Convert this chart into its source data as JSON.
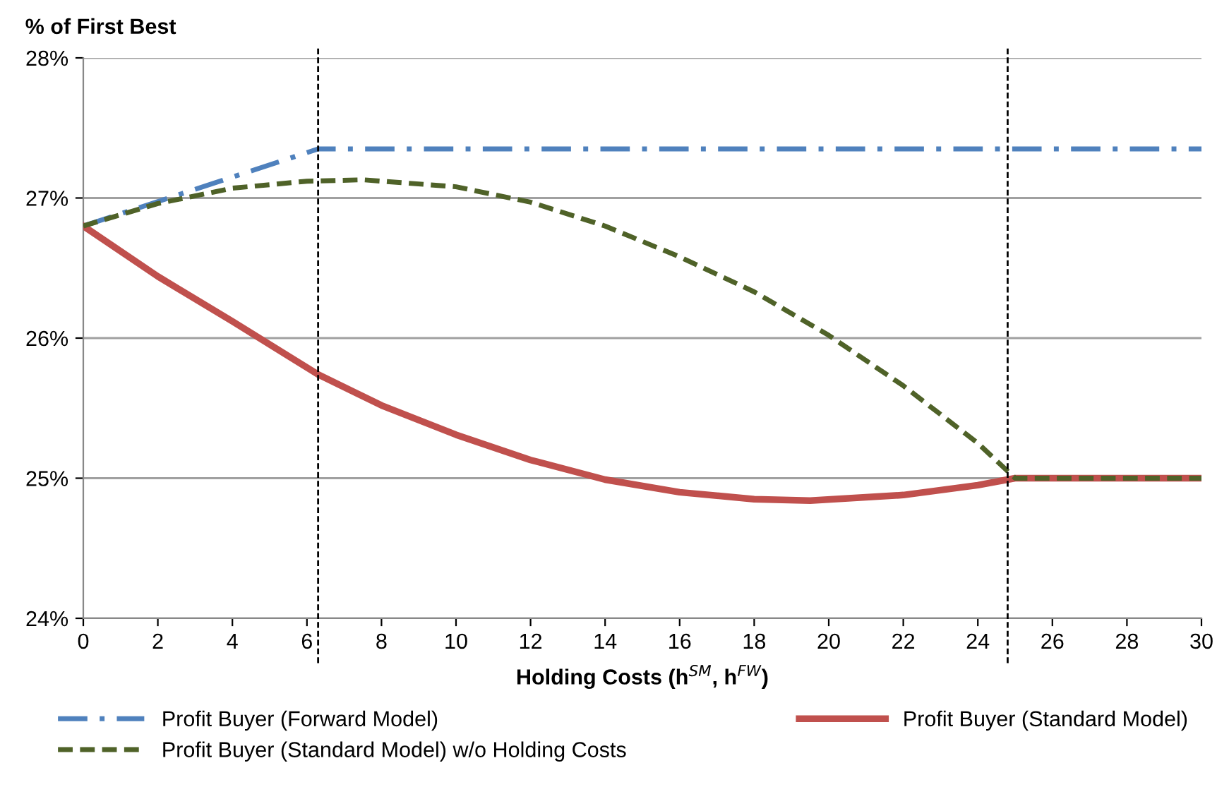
{
  "chart_data": {
    "type": "line",
    "ylabel": "% of First Best",
    "xlabel": "Holding Costs (h$^{SM}$, h$^{FW}$)",
    "xlim": [
      0,
      30
    ],
    "xticks": [
      0,
      2,
      4,
      6,
      8,
      10,
      12,
      14,
      16,
      18,
      20,
      22,
      24,
      26,
      28,
      30
    ],
    "ylim": [
      24,
      28
    ],
    "yticks": [
      {
        "value": 24,
        "label": "24%"
      },
      {
        "value": 25,
        "label": "25%"
      },
      {
        "value": 26,
        "label": "26%"
      },
      {
        "value": 27,
        "label": "27%"
      },
      {
        "value": 28,
        "label": "28%"
      }
    ],
    "grid": "y",
    "legend": "bottom",
    "series": [
      {
        "name": "Profit Buyer (Forward Model)",
        "color": "#4f81bd",
        "line_style": "dashdot",
        "x": [
          0,
          6.3,
          30
        ],
        "values": [
          26.8,
          27.35,
          27.35
        ]
      },
      {
        "name": "Profit Buyer (Standard Model)",
        "color": "#c0504d",
        "line_style": "solid",
        "x": [
          0,
          2,
          4,
          6.3,
          8,
          10,
          12,
          14,
          16,
          18,
          19.5,
          22,
          24,
          25,
          30
        ],
        "values": [
          26.8,
          26.44,
          26.12,
          25.74,
          25.52,
          25.31,
          25.13,
          24.99,
          24.9,
          24.85,
          24.84,
          24.88,
          24.95,
          25.0,
          25.0
        ]
      },
      {
        "name": "Profit Buyer (Standard Model) w/o Holding Costs",
        "color": "#4f6228",
        "line_style": "dashed",
        "x": [
          0,
          2,
          4,
          6,
          7.5,
          10,
          12,
          14,
          16,
          18,
          20,
          22,
          24,
          25,
          30
        ],
        "values": [
          26.8,
          26.96,
          27.07,
          27.12,
          27.13,
          27.08,
          26.97,
          26.8,
          26.58,
          26.33,
          26.02,
          25.66,
          25.25,
          25.0,
          25.0
        ]
      }
    ],
    "ref_lines": [
      {
        "axis": "x",
        "value": 6.3,
        "color": "#000000",
        "line_style": "dashed"
      },
      {
        "axis": "x",
        "value": 24.8,
        "color": "#000000",
        "line_style": "dashed"
      }
    ]
  }
}
